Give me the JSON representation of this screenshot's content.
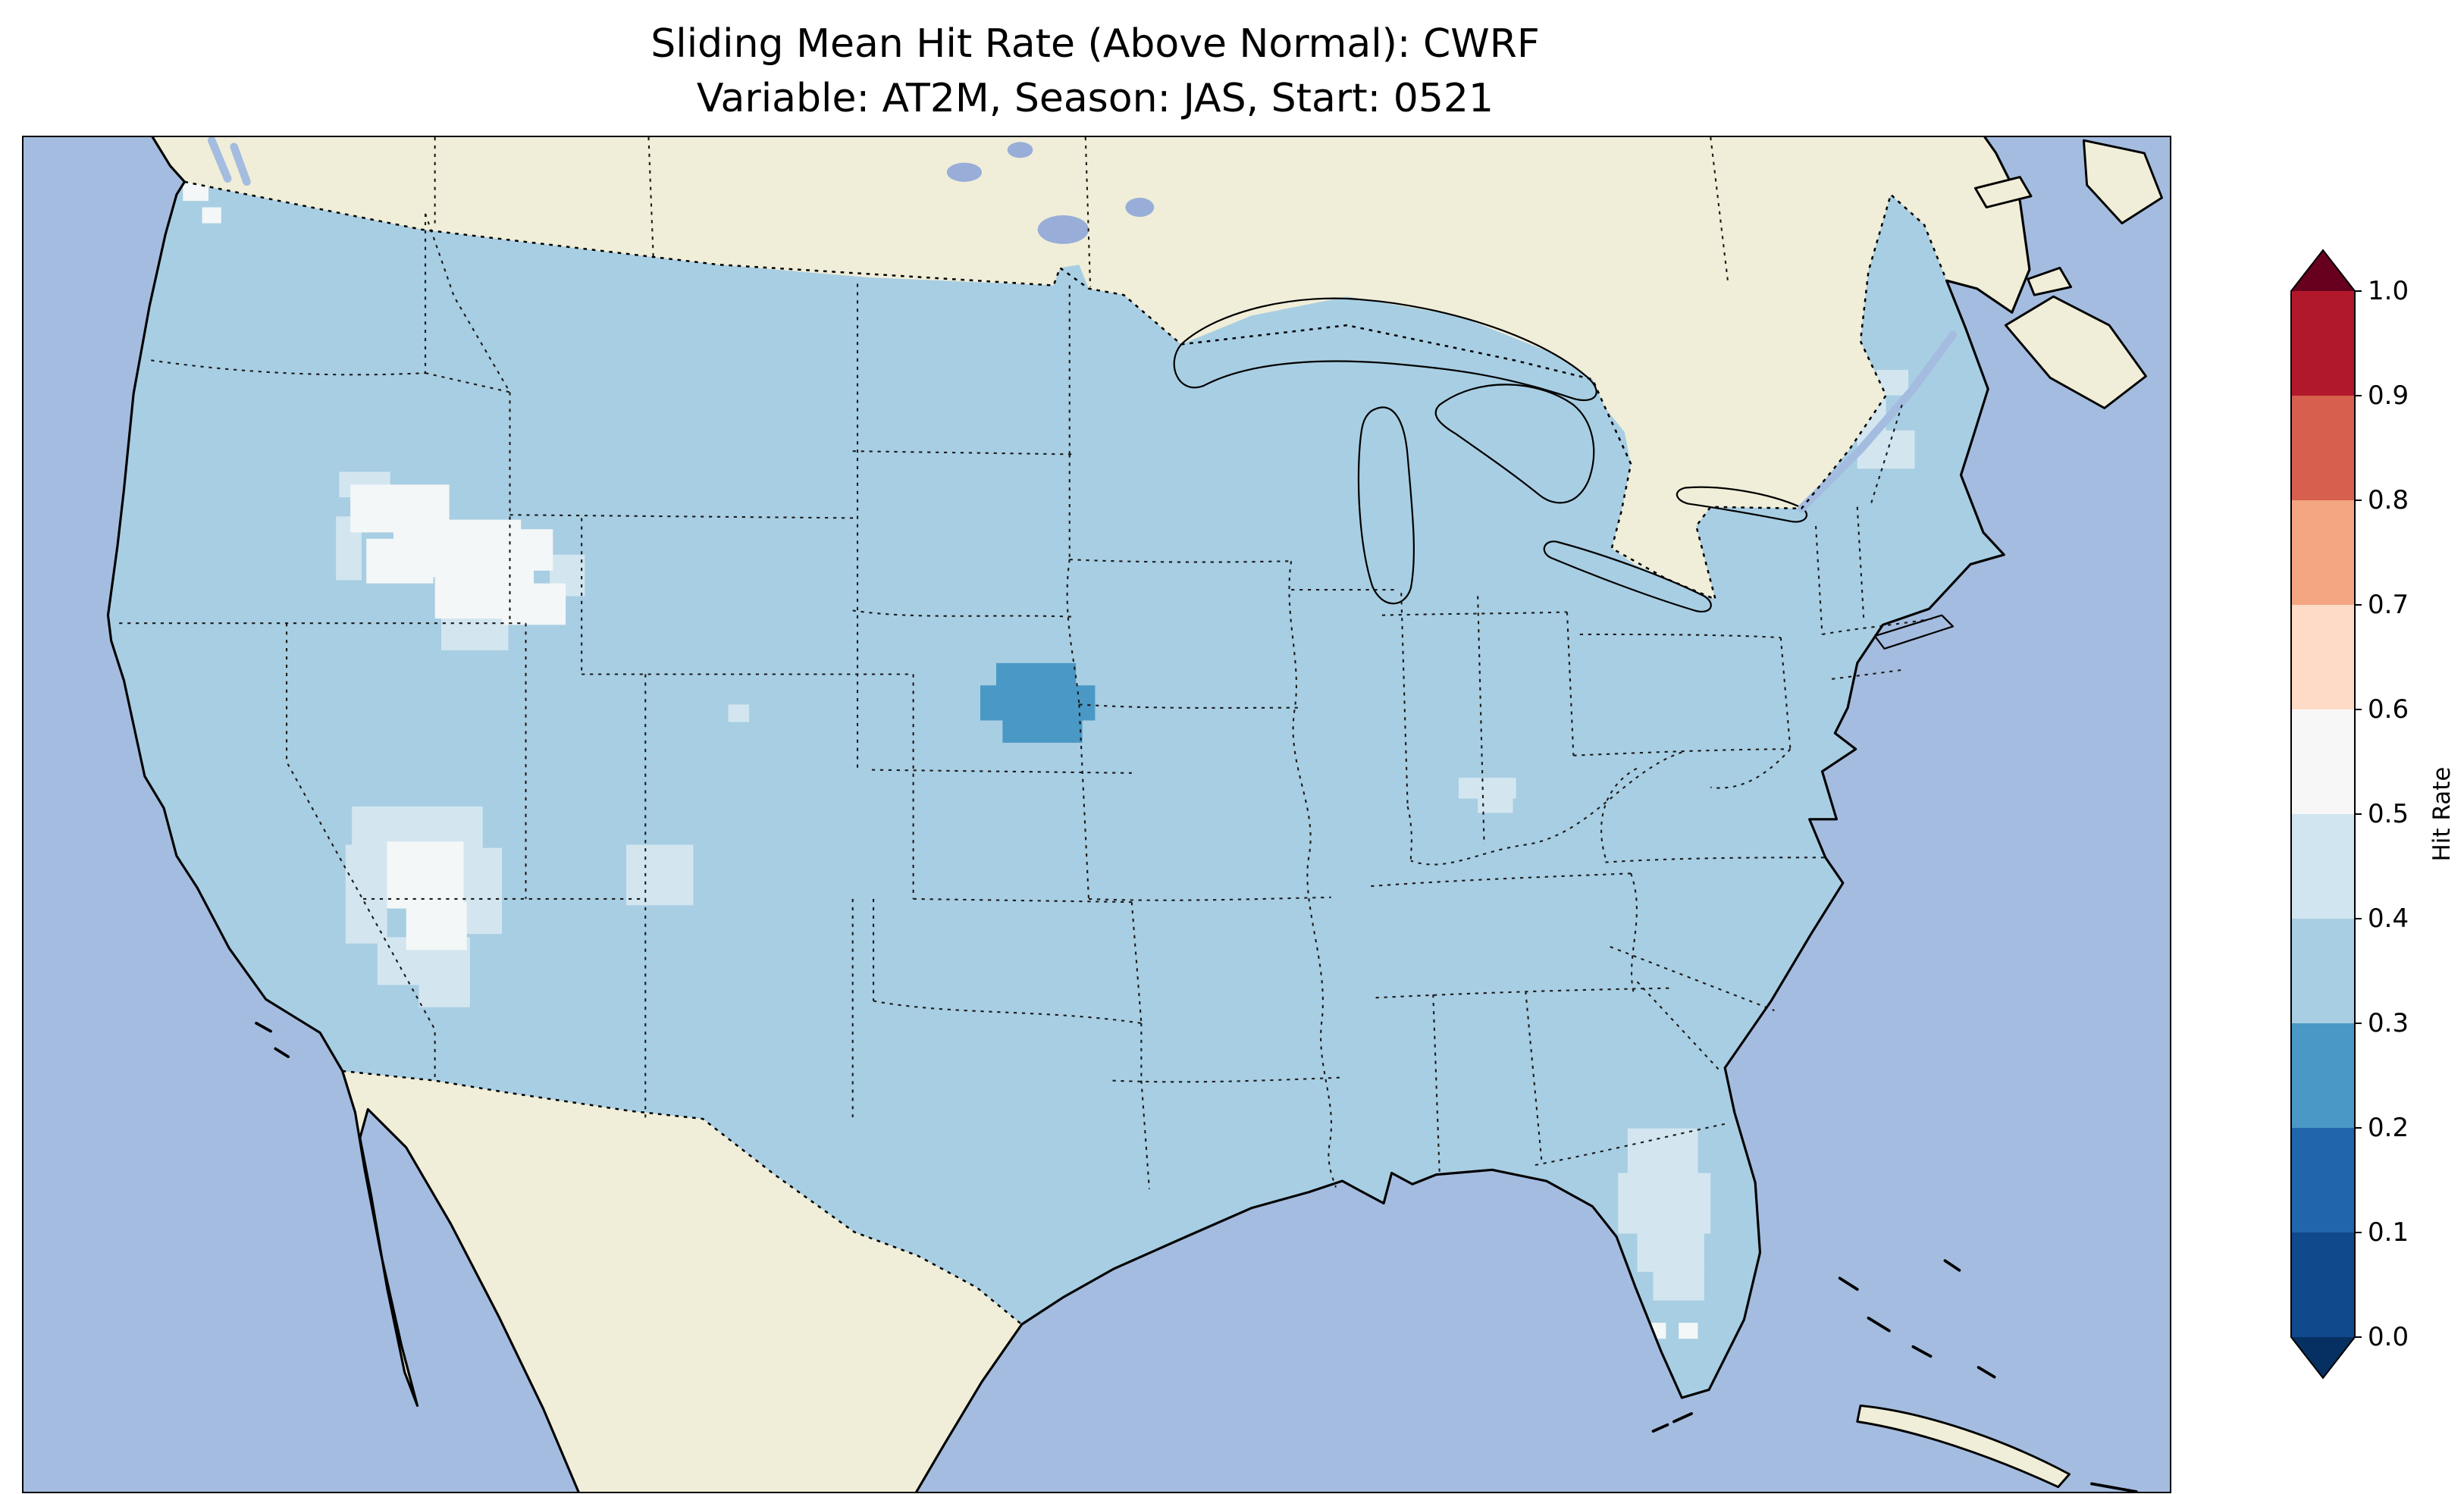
{
  "title": {
    "line1": "Sliding Mean Hit Rate (Above Normal): CWRF",
    "line2": "Variable: AT2M, Season: JAS, Start: 0521"
  },
  "colorbar": {
    "label": "Hit Rate",
    "ticks": [
      "1.0",
      "0.9",
      "0.8",
      "0.7",
      "0.6",
      "0.5",
      "0.4",
      "0.3",
      "0.2",
      "0.1",
      "0.0"
    ],
    "segment_colors": [
      "#b2182b",
      "#d6604d",
      "#f4a582",
      "#fddbc7",
      "#f7f7f7",
      "#d1e5f0",
      "#a8cee3",
      "#4a98c5",
      "#2166ac",
      "#10498c"
    ],
    "over_color": "#67001f",
    "under_color": "#053061"
  },
  "map": {
    "colors": {
      "ocean": "#a4bcdf",
      "lake": "#98aed8",
      "land": "#f0eed8",
      "us": "#a8cee3",
      "bin23": "#4a98c5",
      "bin45": "#d3e6f0",
      "bin56": "#f4f7f7"
    }
  },
  "chart_data": {
    "type": "heatmap",
    "title": "Sliding Mean Hit Rate (Above Normal): CWRF",
    "subtitle": "Variable: AT2M, Season: JAS, Start: 0521",
    "region": "Contiguous United States with southern Canada, northern Mexico, Great Lakes, Gulf of Mexico and western Atlantic visible",
    "colorbar_label": "Hit Rate",
    "colorbar_ticks": [
      0.0,
      0.1,
      0.2,
      0.3,
      0.4,
      0.5,
      0.6,
      0.7,
      0.8,
      0.9,
      1.0
    ],
    "colormap": "RdBu_r discrete with 0.1 bins, extended triangles at both ends (under=dark navy, over=dark maroon)",
    "legend_position": "right vertical colorbar",
    "observations": [
      {
        "area": "Most of the contiguous United States",
        "hit_rate_bin": "0.3-0.4"
      },
      {
        "area": "Central/south-central Nebraska blob",
        "hit_rate_bin": "0.2-0.3"
      },
      {
        "area": "Great Basin patches (NV/UT/WY area)",
        "hit_rate_bin": "0.5-0.6"
      },
      {
        "area": "Southern Nevada / SE California patch",
        "hit_rate_bin": "0.4-0.6"
      },
      {
        "area": "West-central Colorado patch",
        "hit_rate_bin": "0.4-0.5"
      },
      {
        "area": "Central Florida peninsula",
        "hit_rate_bin": "0.4-0.6"
      },
      {
        "area": "Central Kentucky small patch",
        "hit_rate_bin": "0.4-0.5"
      },
      {
        "area": "Northern New England patch",
        "hit_rate_bin": "0.4-0.5"
      },
      {
        "area": "NW Washington coastal cells",
        "hit_rate_bin": "0.5-0.6"
      }
    ]
  }
}
